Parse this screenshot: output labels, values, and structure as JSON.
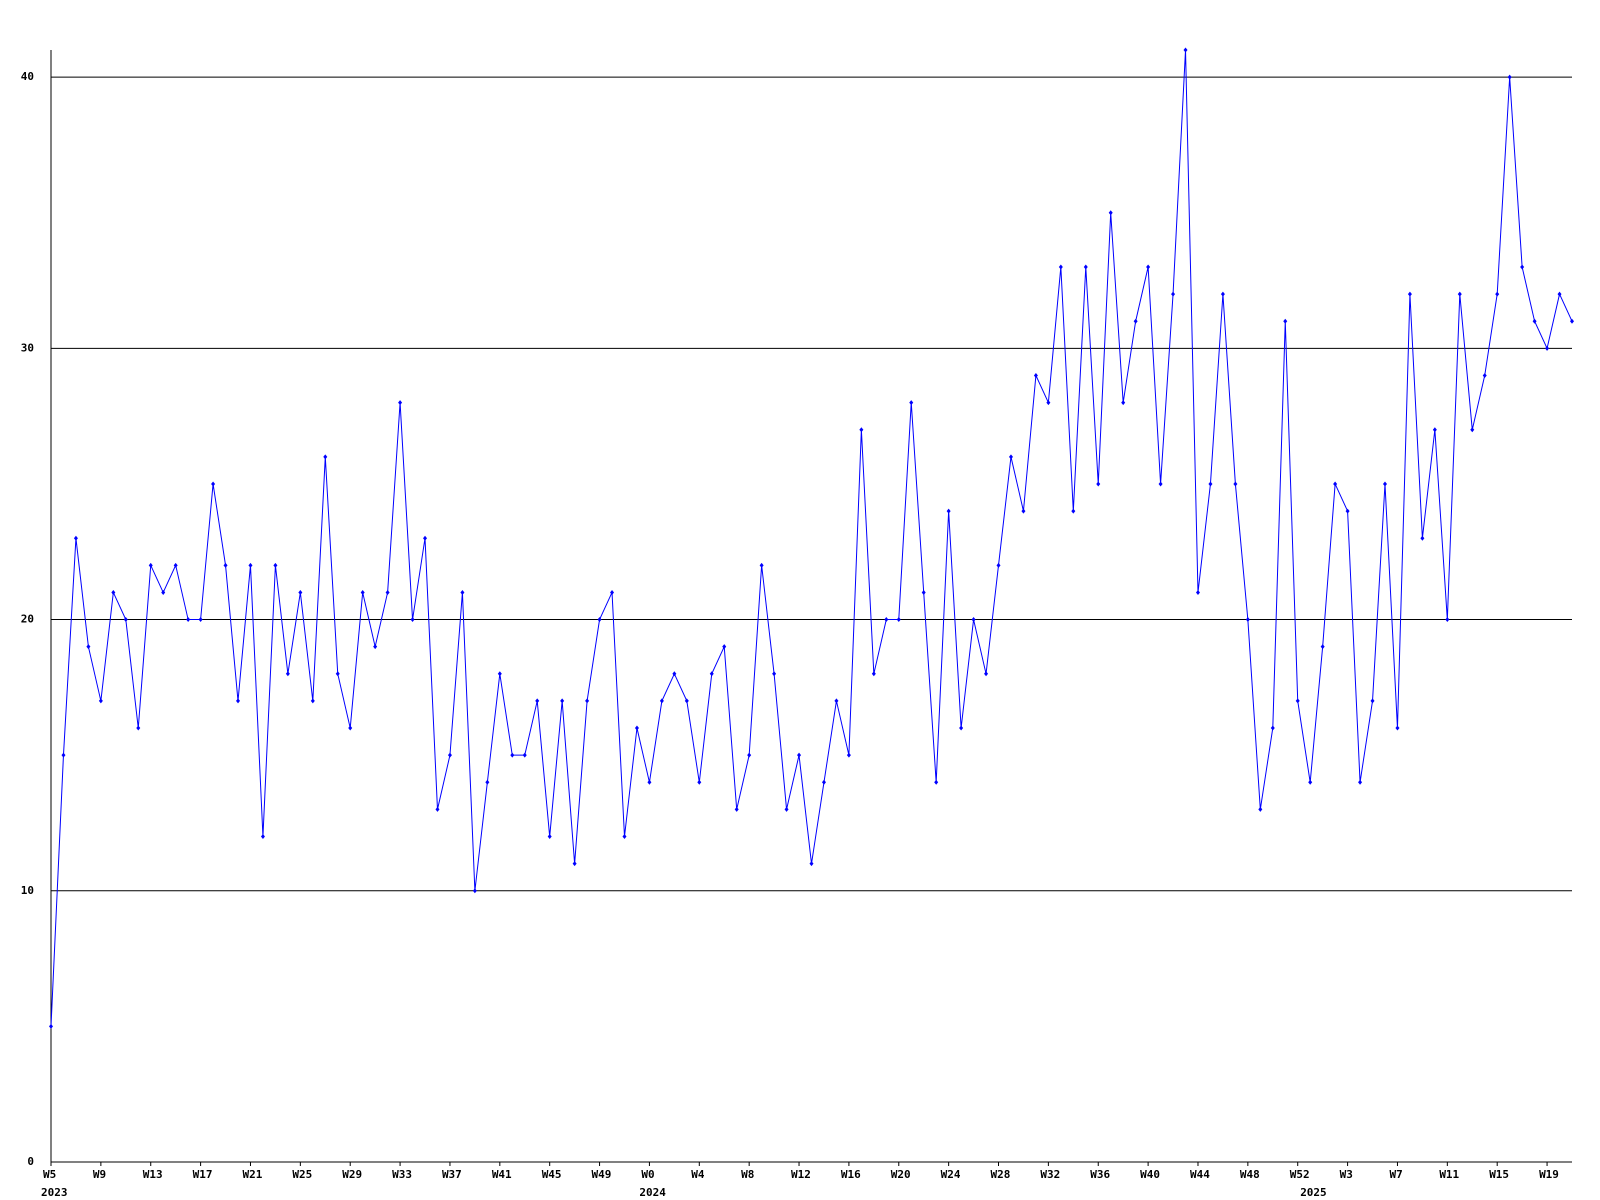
{
  "chart_data": {
    "type": "line",
    "categories": [
      "W5",
      null,
      null,
      null,
      "W9",
      null,
      null,
      null,
      "W13",
      null,
      null,
      null,
      "W17",
      null,
      null,
      null,
      "W21",
      null,
      null,
      null,
      "W25",
      null,
      null,
      null,
      "W29",
      null,
      null,
      null,
      "W33",
      null,
      null,
      null,
      "W37",
      null,
      null,
      null,
      "W41",
      null,
      null,
      null,
      "W45",
      null,
      null,
      null,
      "W49",
      null,
      null,
      null,
      "W0",
      null,
      null,
      null,
      "W4",
      null,
      null,
      null,
      "W8",
      null,
      null,
      null,
      "W12",
      null,
      null,
      null,
      "W16",
      null,
      null,
      null,
      "W20",
      null,
      null,
      null,
      "W24",
      null,
      null,
      null,
      "W28",
      null,
      null,
      null,
      "W32",
      null,
      null,
      null,
      "W36",
      null,
      null,
      null,
      "W40",
      null,
      null,
      null,
      "W44",
      null,
      null,
      null,
      "W48",
      null,
      null,
      null,
      "W52",
      null,
      null,
      null,
      "W3",
      null,
      null,
      null,
      "W7",
      null,
      null,
      null,
      "W11",
      null,
      null,
      null,
      "W15",
      null,
      null,
      null,
      "W19",
      null,
      null
    ],
    "years": [
      "2023",
      null,
      null,
      null,
      null,
      null,
      null,
      null,
      null,
      null,
      null,
      null,
      null,
      null,
      null,
      null,
      null,
      null,
      null,
      null,
      null,
      null,
      null,
      null,
      null,
      null,
      null,
      null,
      null,
      null,
      null,
      null,
      null,
      null,
      null,
      null,
      null,
      null,
      null,
      null,
      null,
      null,
      null,
      null,
      null,
      null,
      null,
      null,
      "2024",
      null,
      null,
      null,
      null,
      null,
      null,
      null,
      null,
      null,
      null,
      null,
      null,
      null,
      null,
      null,
      null,
      null,
      null,
      null,
      null,
      null,
      null,
      null,
      null,
      null,
      null,
      null,
      null,
      null,
      null,
      null,
      null,
      null,
      null,
      null,
      null,
      null,
      null,
      null,
      null,
      null,
      null,
      null,
      null,
      null,
      null,
      null,
      null,
      null,
      null,
      null,
      null,
      "2025",
      null,
      null,
      null,
      null,
      null,
      null,
      null,
      null,
      null,
      null,
      null,
      null,
      null,
      null,
      null,
      null,
      null,
      null,
      null,
      null
    ],
    "series": [
      {
        "color": "#0000ff",
        "values": [
          5,
          15,
          23,
          19,
          17,
          21,
          20,
          16,
          22,
          21,
          22,
          20,
          20,
          25,
          22,
          17,
          22,
          12,
          22,
          18,
          21,
          17,
          26,
          18,
          16,
          21,
          19,
          21,
          28,
          20,
          23,
          13,
          15,
          21,
          10,
          14,
          18,
          15,
          15,
          17,
          12,
          17,
          11,
          17,
          20,
          21,
          12,
          16,
          14,
          17,
          18,
          17,
          14,
          18,
          19,
          13,
          15,
          22,
          18,
          13,
          15,
          11,
          14,
          17,
          15,
          27,
          18,
          20,
          20,
          28,
          21,
          14,
          24,
          16,
          20,
          18,
          22,
          26,
          24,
          29,
          28,
          33,
          24,
          33,
          25,
          35,
          28,
          31,
          33,
          25,
          32,
          41,
          21,
          25,
          32,
          25,
          20,
          13,
          16,
          31,
          17,
          14,
          19,
          25,
          24,
          14,
          17,
          25,
          16,
          32,
          23,
          27,
          20,
          32,
          27,
          29,
          32,
          40,
          33,
          31,
          30,
          32,
          31
        ]
      }
    ],
    "ylim": [
      0,
      41
    ],
    "yticks": [
      0,
      10,
      20,
      30,
      40
    ],
    "grid": true
  }
}
